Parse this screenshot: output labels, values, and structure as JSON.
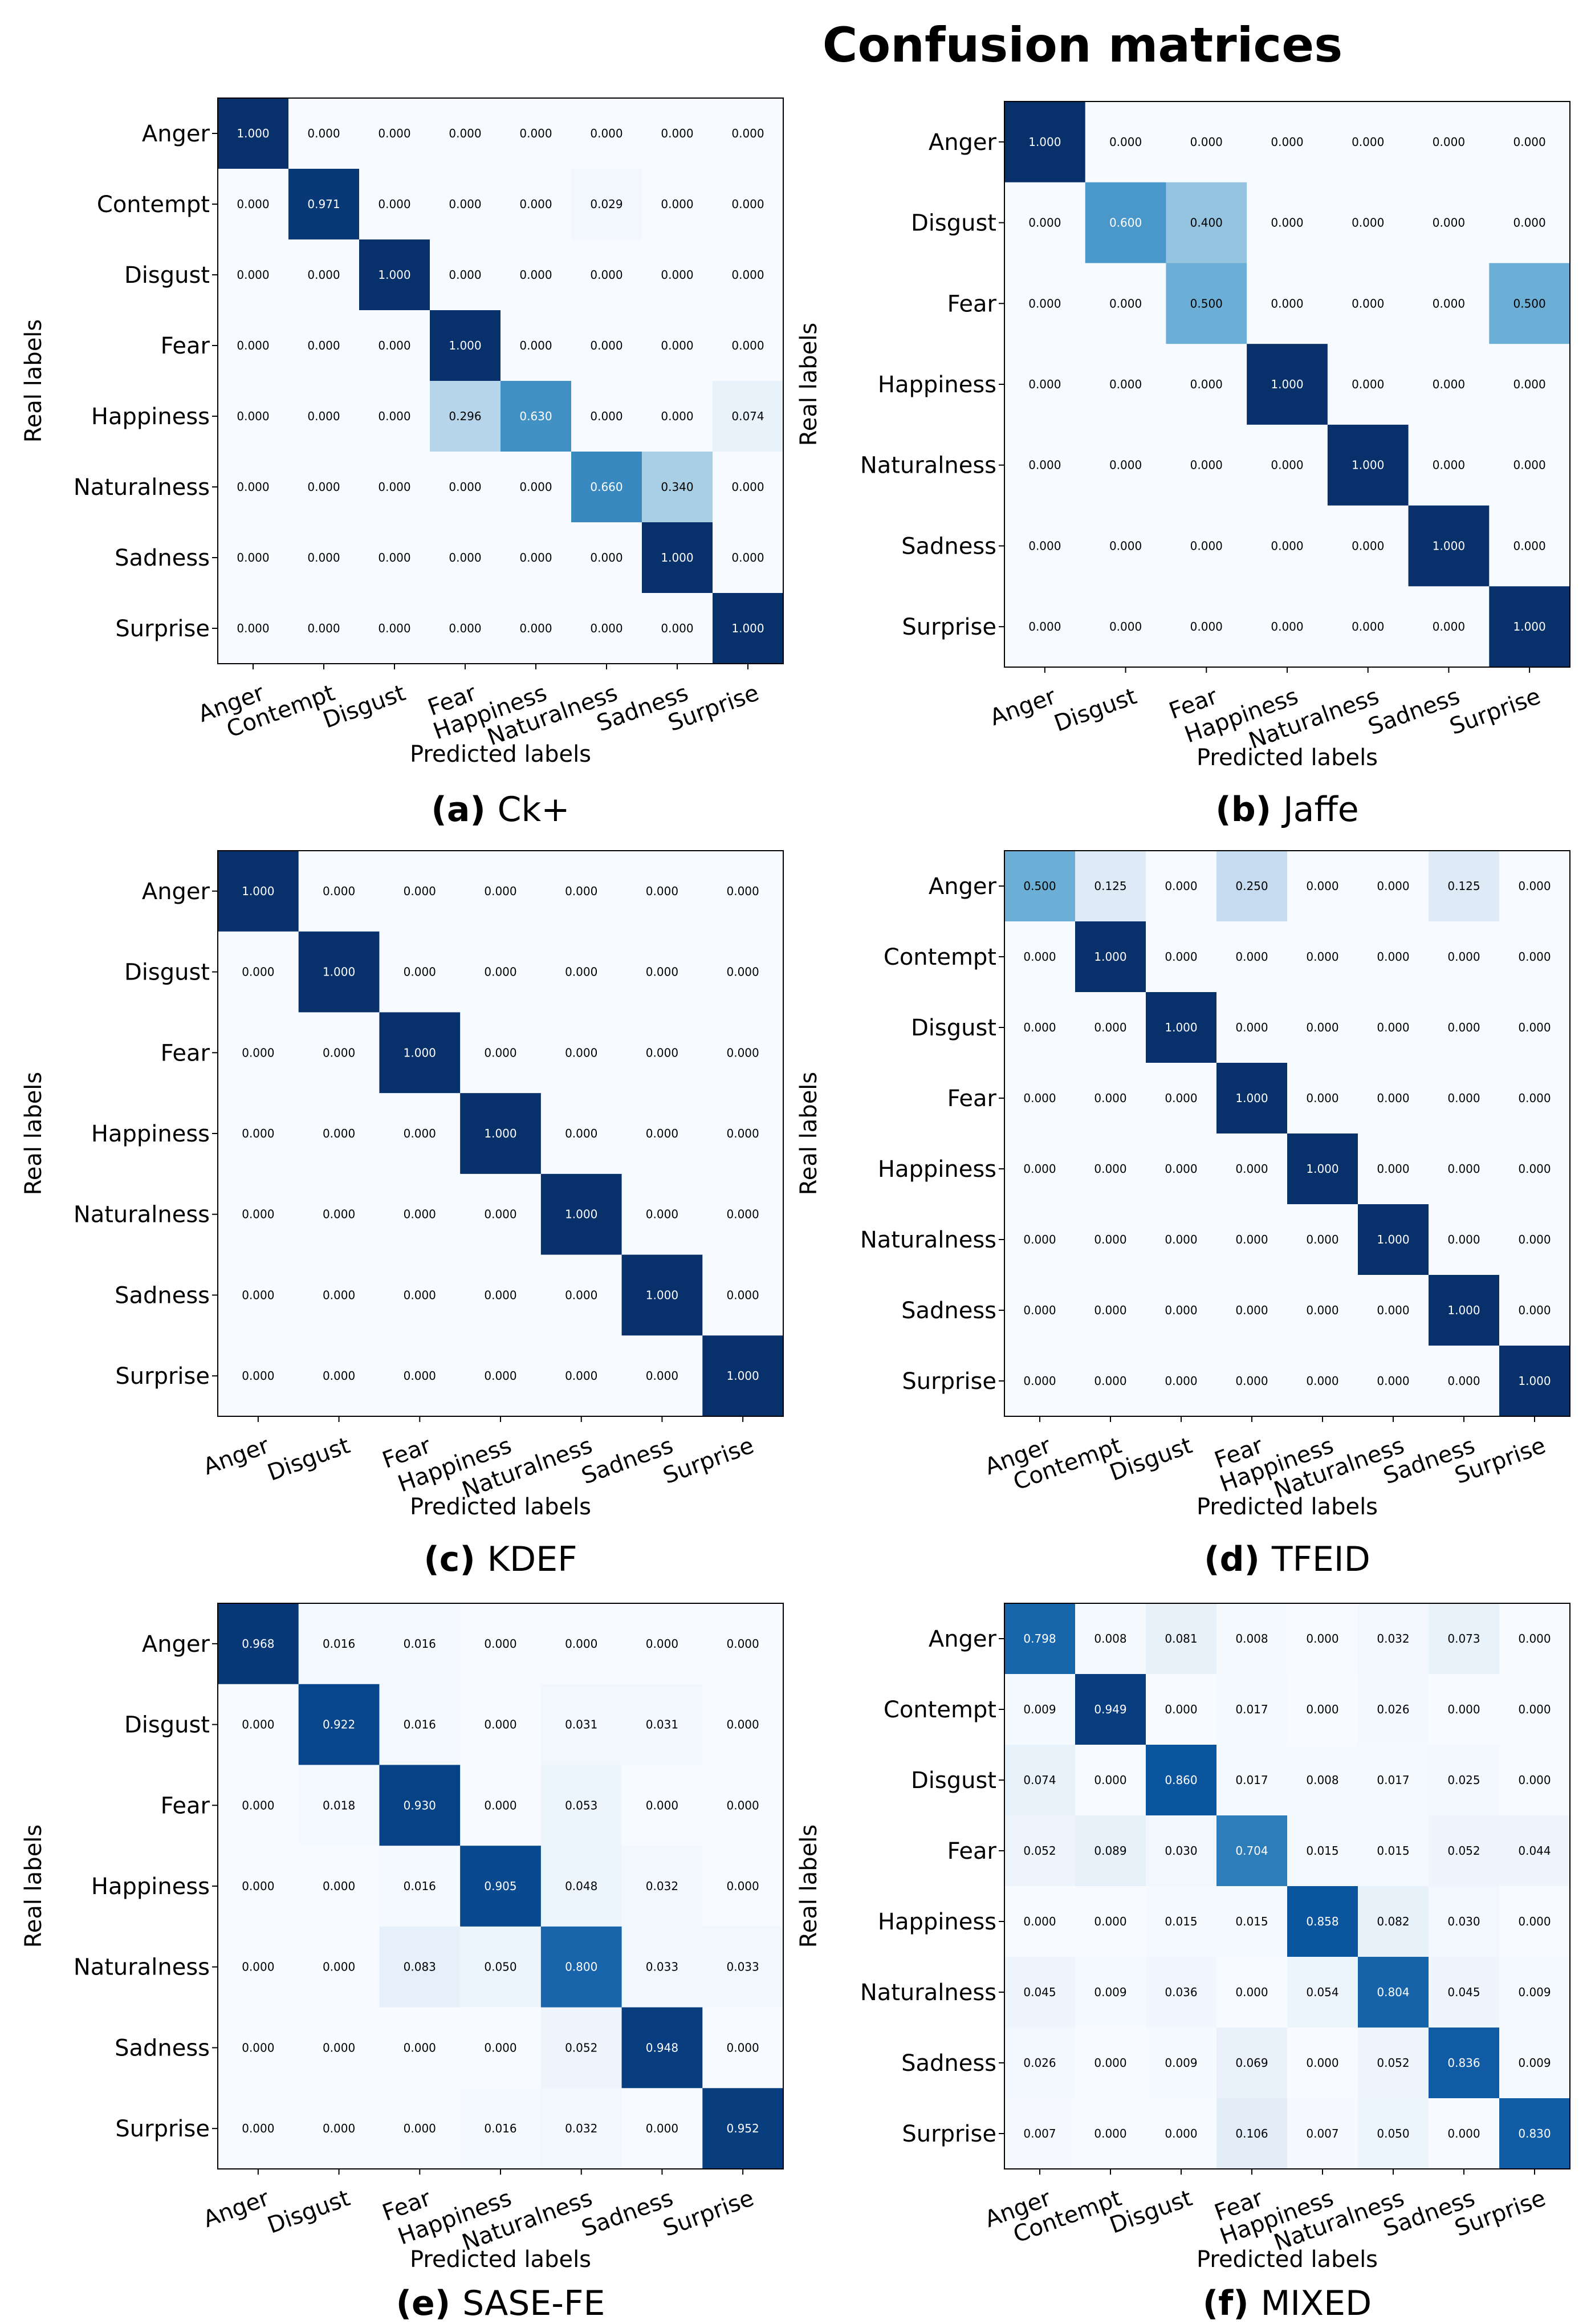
{
  "page_title": "Confusion matrices",
  "chart_data": [
    {
      "type": "heatmap",
      "caption_letter": "(a)",
      "caption_name": "Ck+",
      "xlabel": "Predicted labels",
      "ylabel": "Real labels",
      "labels": [
        "Anger",
        "Contempt",
        "Disgust",
        "Fear",
        "Happiness",
        "Naturalness",
        "Sadness",
        "Surprise"
      ],
      "matrix": [
        [
          1.0,
          0.0,
          0.0,
          0.0,
          0.0,
          0.0,
          0.0,
          0.0
        ],
        [
          0.0,
          0.971,
          0.0,
          0.0,
          0.0,
          0.029,
          0.0,
          0.0
        ],
        [
          0.0,
          0.0,
          1.0,
          0.0,
          0.0,
          0.0,
          0.0,
          0.0
        ],
        [
          0.0,
          0.0,
          0.0,
          1.0,
          0.0,
          0.0,
          0.0,
          0.0
        ],
        [
          0.0,
          0.0,
          0.0,
          0.296,
          0.63,
          0.0,
          0.0,
          0.074
        ],
        [
          0.0,
          0.0,
          0.0,
          0.0,
          0.0,
          0.66,
          0.34,
          0.0
        ],
        [
          0.0,
          0.0,
          0.0,
          0.0,
          0.0,
          0.0,
          1.0,
          0.0
        ],
        [
          0.0,
          0.0,
          0.0,
          0.0,
          0.0,
          0.0,
          0.0,
          1.0
        ]
      ]
    },
    {
      "type": "heatmap",
      "caption_letter": "(b)",
      "caption_name": "Jaffe",
      "xlabel": "Predicted labels",
      "ylabel": "Real labels",
      "labels": [
        "Anger",
        "Disgust",
        "Fear",
        "Happiness",
        "Naturalness",
        "Sadness",
        "Surprise"
      ],
      "matrix": [
        [
          1.0,
          0.0,
          0.0,
          0.0,
          0.0,
          0.0,
          0.0
        ],
        [
          0.0,
          0.6,
          0.4,
          0.0,
          0.0,
          0.0,
          0.0
        ],
        [
          0.0,
          0.0,
          0.5,
          0.0,
          0.0,
          0.0,
          0.5
        ],
        [
          0.0,
          0.0,
          0.0,
          1.0,
          0.0,
          0.0,
          0.0
        ],
        [
          0.0,
          0.0,
          0.0,
          0.0,
          1.0,
          0.0,
          0.0
        ],
        [
          0.0,
          0.0,
          0.0,
          0.0,
          0.0,
          1.0,
          0.0
        ],
        [
          0.0,
          0.0,
          0.0,
          0.0,
          0.0,
          0.0,
          1.0
        ]
      ]
    },
    {
      "type": "heatmap",
      "caption_letter": "(c)",
      "caption_name": "KDEF",
      "xlabel": "Predicted labels",
      "ylabel": "Real labels",
      "labels": [
        "Anger",
        "Disgust",
        "Fear",
        "Happiness",
        "Naturalness",
        "Sadness",
        "Surprise"
      ],
      "matrix": [
        [
          1.0,
          0.0,
          0.0,
          0.0,
          0.0,
          0.0,
          0.0
        ],
        [
          0.0,
          1.0,
          0.0,
          0.0,
          0.0,
          0.0,
          0.0
        ],
        [
          0.0,
          0.0,
          1.0,
          0.0,
          0.0,
          0.0,
          0.0
        ],
        [
          0.0,
          0.0,
          0.0,
          1.0,
          0.0,
          0.0,
          0.0
        ],
        [
          0.0,
          0.0,
          0.0,
          0.0,
          1.0,
          0.0,
          0.0
        ],
        [
          0.0,
          0.0,
          0.0,
          0.0,
          0.0,
          1.0,
          0.0
        ],
        [
          0.0,
          0.0,
          0.0,
          0.0,
          0.0,
          0.0,
          1.0
        ]
      ]
    },
    {
      "type": "heatmap",
      "caption_letter": "(d)",
      "caption_name": "TFEID",
      "xlabel": "Predicted labels",
      "ylabel": "Real labels",
      "labels": [
        "Anger",
        "Contempt",
        "Disgust",
        "Fear",
        "Happiness",
        "Naturalness",
        "Sadness",
        "Surprise"
      ],
      "matrix": [
        [
          0.5,
          0.125,
          0.0,
          0.25,
          0.0,
          0.0,
          0.125,
          0.0
        ],
        [
          0.0,
          1.0,
          0.0,
          0.0,
          0.0,
          0.0,
          0.0,
          0.0
        ],
        [
          0.0,
          0.0,
          1.0,
          0.0,
          0.0,
          0.0,
          0.0,
          0.0
        ],
        [
          0.0,
          0.0,
          0.0,
          1.0,
          0.0,
          0.0,
          0.0,
          0.0
        ],
        [
          0.0,
          0.0,
          0.0,
          0.0,
          1.0,
          0.0,
          0.0,
          0.0
        ],
        [
          0.0,
          0.0,
          0.0,
          0.0,
          0.0,
          1.0,
          0.0,
          0.0
        ],
        [
          0.0,
          0.0,
          0.0,
          0.0,
          0.0,
          0.0,
          1.0,
          0.0
        ],
        [
          0.0,
          0.0,
          0.0,
          0.0,
          0.0,
          0.0,
          0.0,
          1.0
        ]
      ]
    },
    {
      "type": "heatmap",
      "caption_letter": "(e)",
      "caption_name": "SASE-FE",
      "xlabel": "Predicted labels",
      "ylabel": "Real labels",
      "labels": [
        "Anger",
        "Disgust",
        "Fear",
        "Happiness",
        "Naturalness",
        "Sadness",
        "Surprise"
      ],
      "matrix": [
        [
          0.968,
          0.016,
          0.016,
          0.0,
          0.0,
          0.0,
          0.0
        ],
        [
          0.0,
          0.922,
          0.016,
          0.0,
          0.031,
          0.031,
          0.0
        ],
        [
          0.0,
          0.018,
          0.93,
          0.0,
          0.053,
          0.0,
          0.0
        ],
        [
          0.0,
          0.0,
          0.016,
          0.905,
          0.048,
          0.032,
          0.0
        ],
        [
          0.0,
          0.0,
          0.083,
          0.05,
          0.8,
          0.033,
          0.033
        ],
        [
          0.0,
          0.0,
          0.0,
          0.0,
          0.052,
          0.948,
          0.0
        ],
        [
          0.0,
          0.0,
          0.0,
          0.016,
          0.032,
          0.0,
          0.952
        ]
      ]
    },
    {
      "type": "heatmap",
      "caption_letter": "(f)",
      "caption_name": "MIXED",
      "xlabel": "Predicted labels",
      "ylabel": "Real labels",
      "labels": [
        "Anger",
        "Contempt",
        "Disgust",
        "Fear",
        "Happiness",
        "Naturalness",
        "Sadness",
        "Surprise"
      ],
      "matrix": [
        [
          0.798,
          0.008,
          0.081,
          0.008,
          0.0,
          0.032,
          0.073,
          0.0
        ],
        [
          0.009,
          0.949,
          0.0,
          0.017,
          0.0,
          0.026,
          0.0,
          0.0
        ],
        [
          0.074,
          0.0,
          0.86,
          0.017,
          0.008,
          0.017,
          0.025,
          0.0
        ],
        [
          0.052,
          0.089,
          0.03,
          0.704,
          0.015,
          0.015,
          0.052,
          0.044
        ],
        [
          0.0,
          0.0,
          0.015,
          0.015,
          0.858,
          0.082,
          0.03,
          0.0
        ],
        [
          0.045,
          0.009,
          0.036,
          0.0,
          0.054,
          0.804,
          0.045,
          0.009
        ],
        [
          0.026,
          0.0,
          0.009,
          0.069,
          0.0,
          0.052,
          0.836,
          0.009
        ],
        [
          0.007,
          0.0,
          0.0,
          0.106,
          0.007,
          0.05,
          0.0,
          0.83
        ]
      ]
    }
  ]
}
